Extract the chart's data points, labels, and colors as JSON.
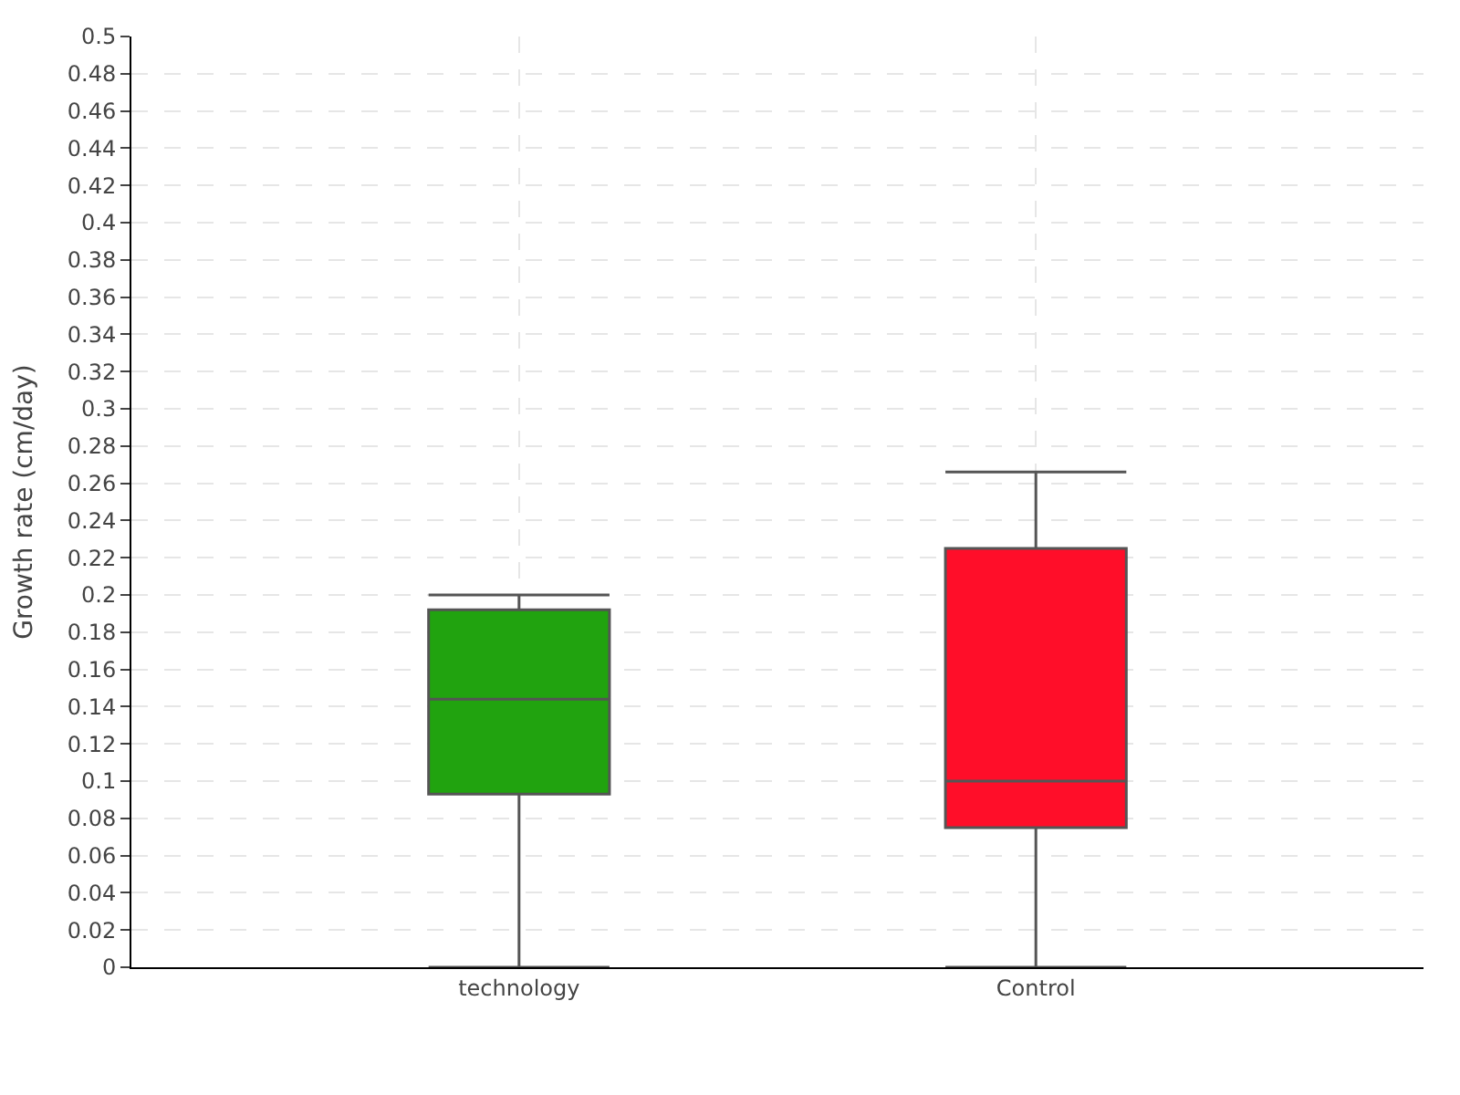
{
  "chart_data": {
    "type": "box",
    "ylabel": "Growth rate (cm/day)",
    "categories": [
      "technology",
      "Control"
    ],
    "boxes": [
      {
        "low": 0,
        "q1": 0.093,
        "median": 0.144,
        "q3": 0.192,
        "high": 0.2
      },
      {
        "low": 0,
        "q1": 0.075,
        "median": 0.1,
        "q3": 0.225,
        "high": 0.266
      }
    ],
    "colors": [
      "#21a30f",
      "#ff0e29"
    ],
    "ylim": [
      0,
      0.5
    ],
    "yticks": [
      0,
      0.02,
      0.04,
      0.06,
      0.08,
      0.1,
      0.12,
      0.14,
      0.16,
      0.18,
      0.2,
      0.22,
      0.24,
      0.26,
      0.28,
      0.3,
      0.32,
      0.34,
      0.36,
      0.38,
      0.4,
      0.42,
      0.44,
      0.46,
      0.48,
      0.5
    ],
    "grid": true
  }
}
